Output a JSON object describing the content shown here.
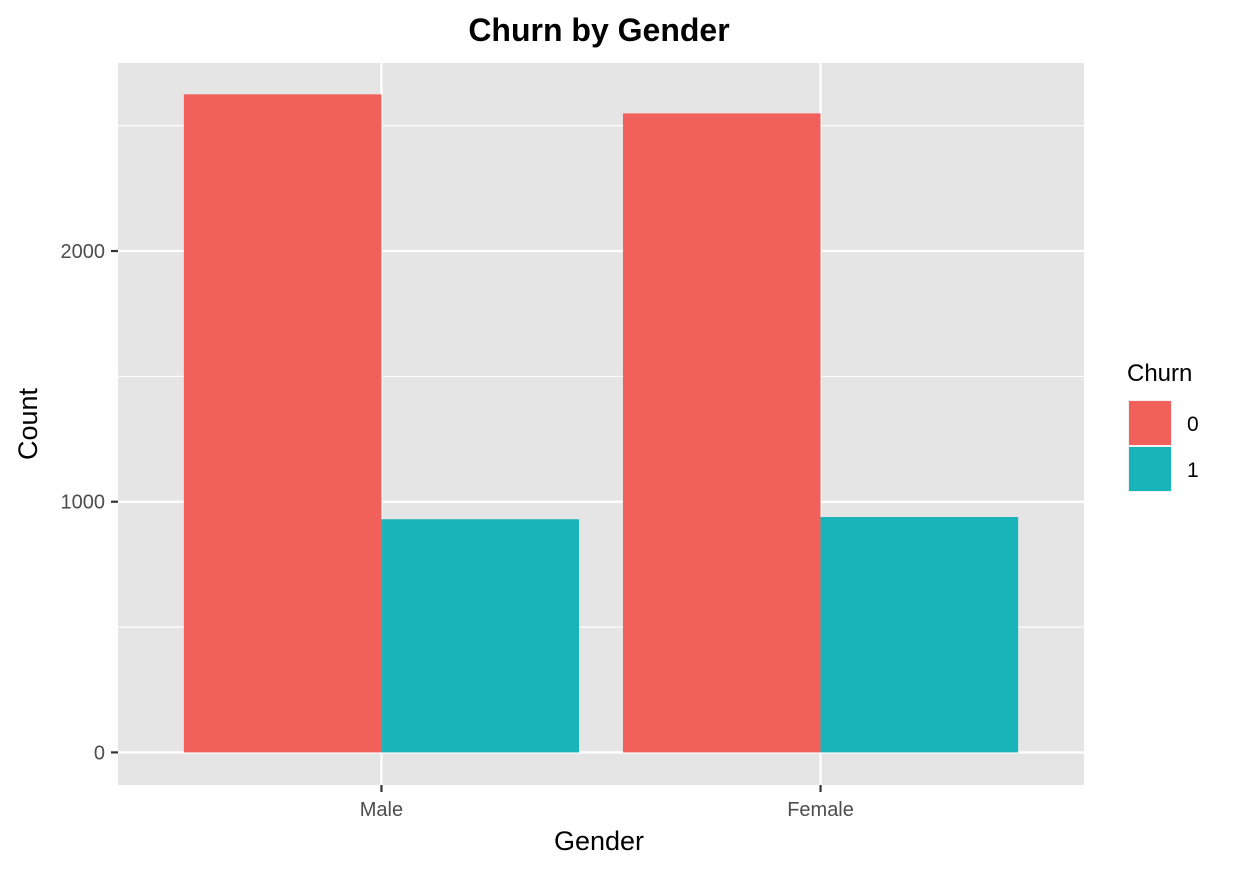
{
  "chart_data": {
    "type": "bar",
    "title": "Churn by Gender",
    "xlabel": "Gender",
    "ylabel": "Count",
    "categories": [
      "Male",
      "Female"
    ],
    "series": [
      {
        "name": "0",
        "values": [
          2625,
          2549
        ],
        "color": "#F2605B"
      },
      {
        "name": "1",
        "values": [
          930,
          939
        ],
        "color": "#19B4B9"
      }
    ],
    "ylim": [
      -130,
      2750
    ],
    "yticks": [
      0,
      1000,
      2000
    ],
    "ytick_labels": [
      "0",
      "1000",
      "2000"
    ],
    "legend": {
      "title": "Churn",
      "placement": "right"
    },
    "grid": true,
    "background": "#E5E5E5"
  }
}
